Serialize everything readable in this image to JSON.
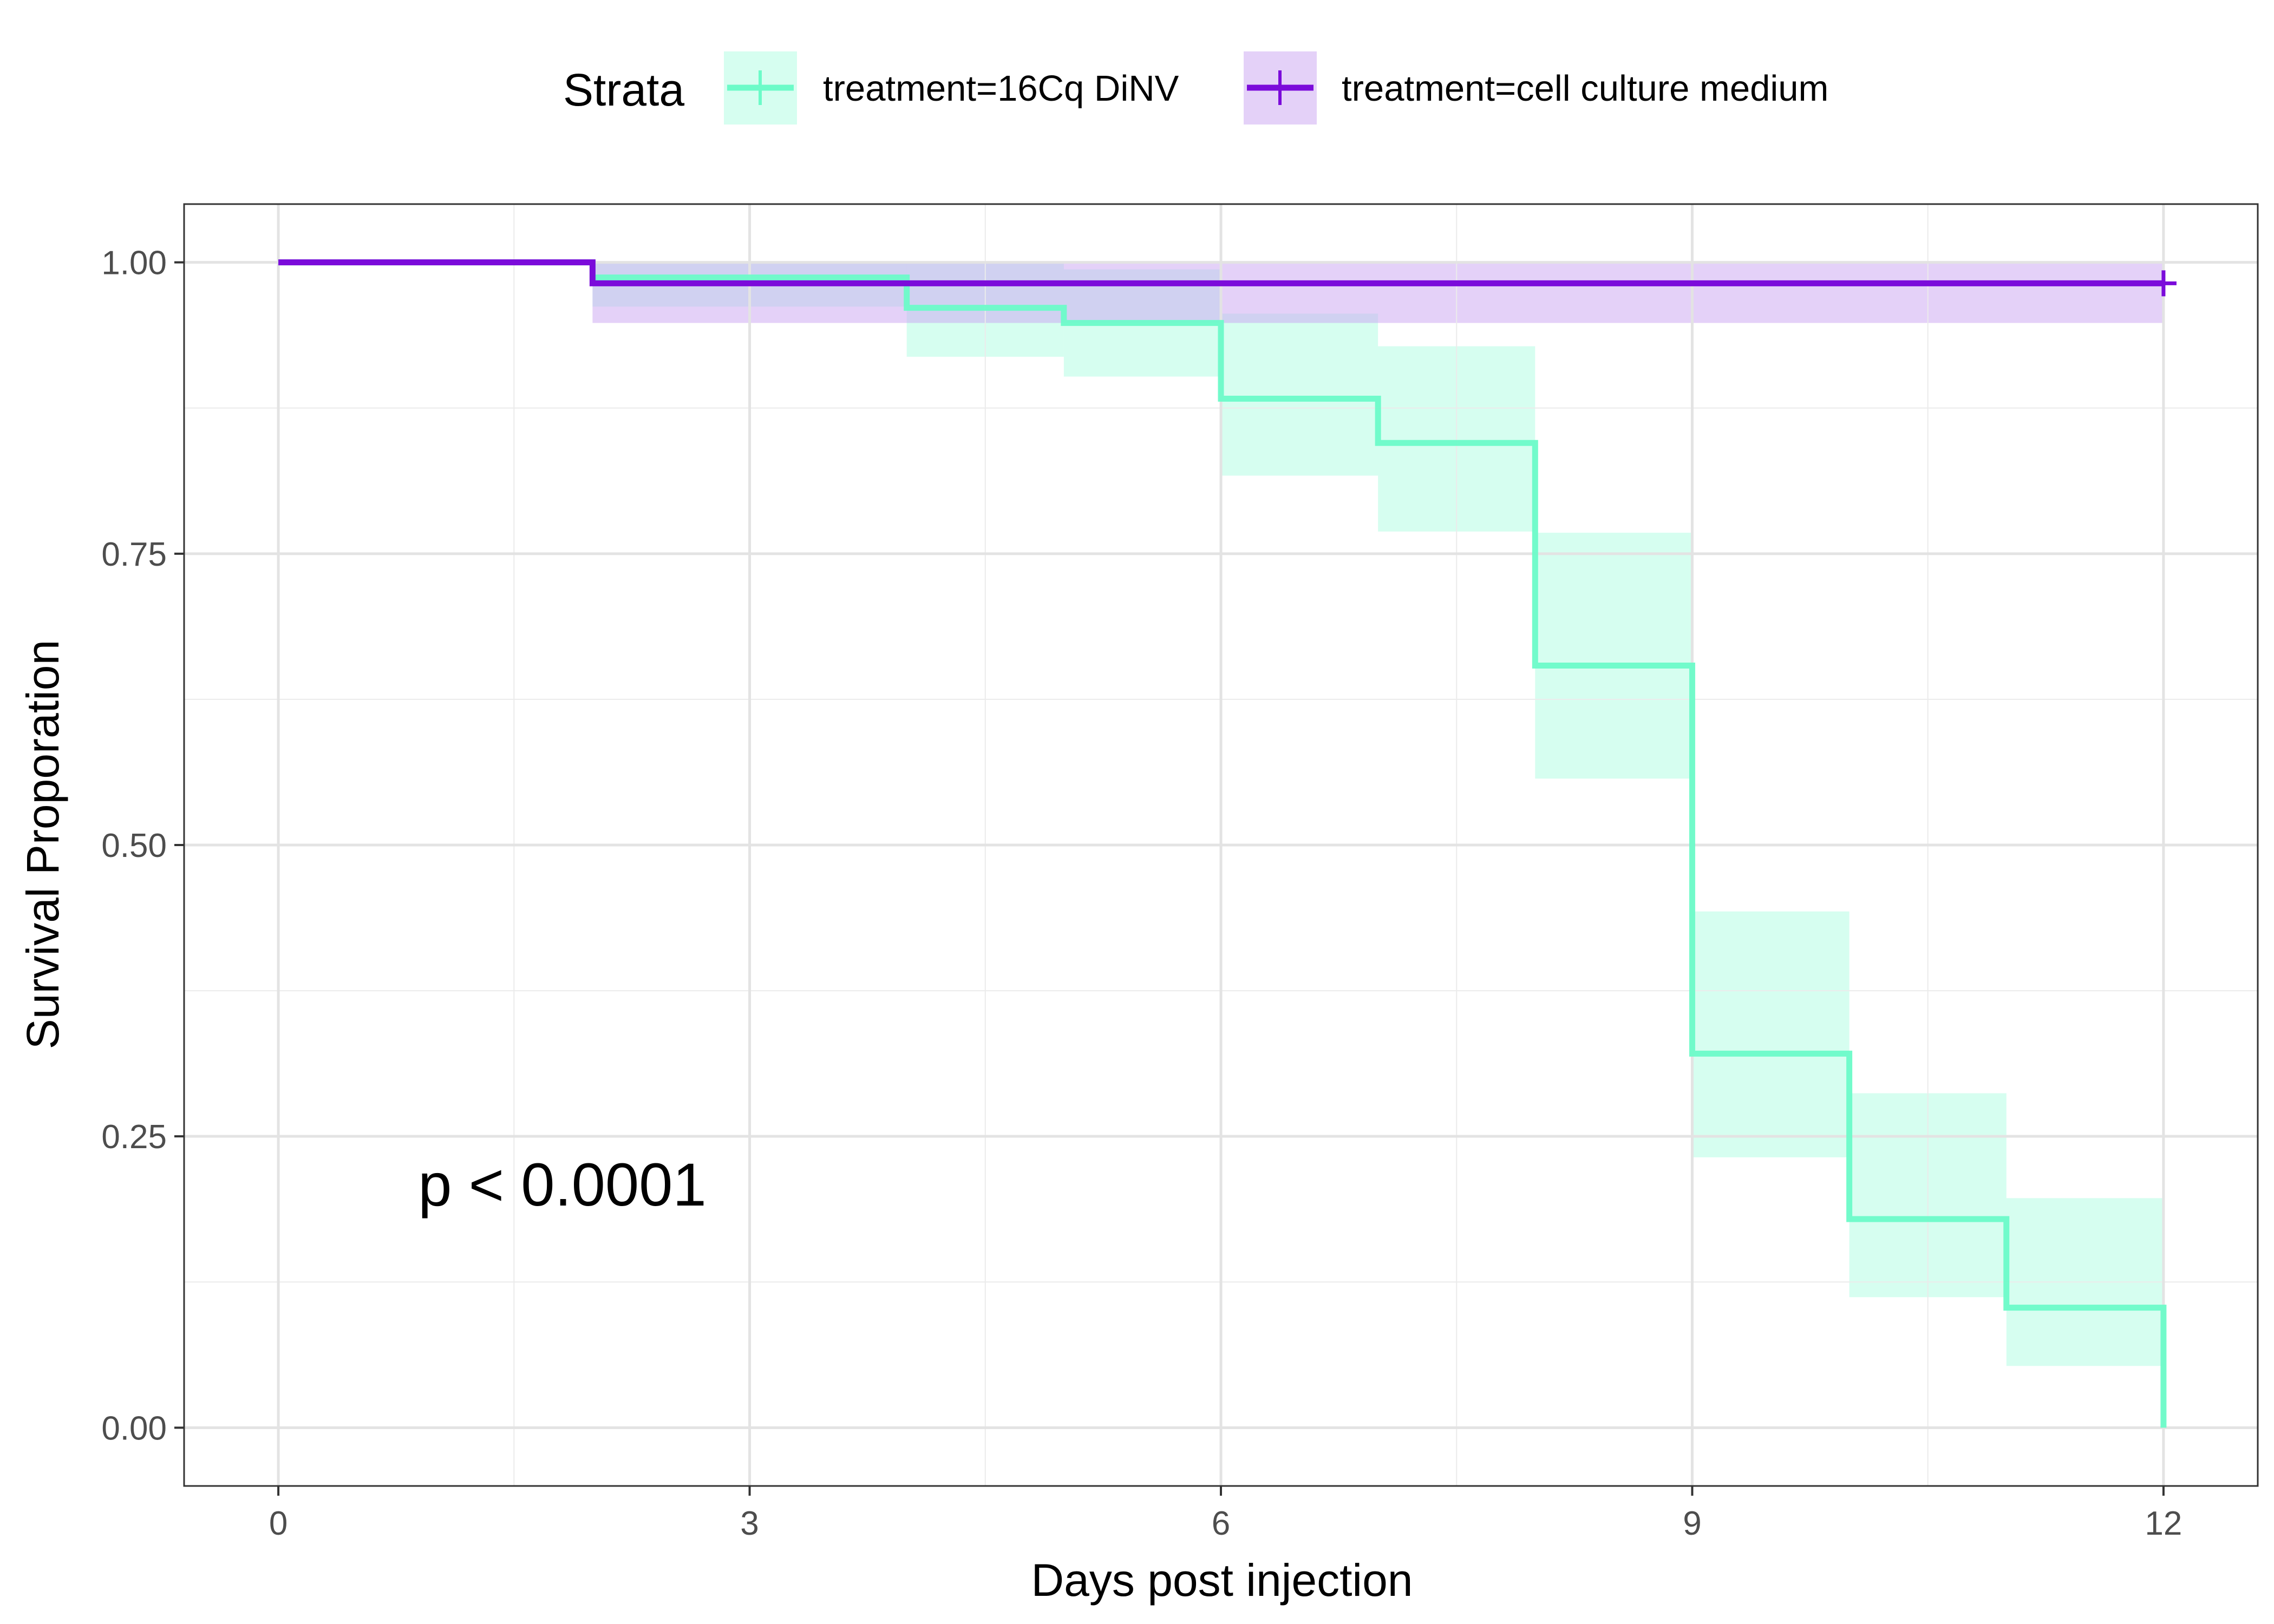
{
  "chart_data": {
    "type": "line",
    "step": true,
    "xlabel": "Days post injection",
    "ylabel": "Survival Proporation",
    "xlim": [
      -0.6,
      12.6
    ],
    "ylim": [
      -0.05,
      1.05
    ],
    "xticks": [
      0,
      3,
      6,
      9,
      12
    ],
    "xtick_labels": [
      "0",
      "3",
      "6",
      "9",
      "12"
    ],
    "yticks": [
      0,
      0.25,
      0.5,
      0.75,
      1.0
    ],
    "ytick_labels": [
      "0.00",
      "0.25",
      "0.50",
      "0.75",
      "1.00"
    ],
    "grid": true,
    "annotation": {
      "text": "p < 0.0001",
      "x": 1.2,
      "y": 0.2
    },
    "legend": {
      "title": "Strata",
      "placement": "top"
    },
    "series": [
      {
        "name": "treatment=16Cq DiNV",
        "color": "#6CFBC8",
        "ci_color": "#6CFBC8",
        "x": [
          0,
          2,
          4,
          5,
          6,
          7,
          8,
          9,
          10,
          11,
          12
        ],
        "y": [
          1.0,
          0.987,
          0.961,
          0.948,
          0.883,
          0.845,
          0.654,
          0.321,
          0.179,
          0.103,
          0.0
        ],
        "lower": [
          1.0,
          0.962,
          0.919,
          0.902,
          0.817,
          0.769,
          0.557,
          0.232,
          0.112,
          0.053,
          0.0
        ],
        "upper": [
          1.0,
          1.0,
          1.0,
          0.994,
          0.956,
          0.928,
          0.768,
          0.443,
          0.287,
          0.197,
          0.0
        ],
        "censor_x": []
      },
      {
        "name": "treatment=cell culture medium",
        "color": "#7B0BDA",
        "ci_color": "#C9A3F2",
        "x": [
          0,
          2,
          12
        ],
        "y": [
          1.0,
          0.982,
          0.982
        ],
        "lower": [
          1.0,
          0.948,
          0.948
        ],
        "upper": [
          1.0,
          1.0,
          1.0
        ],
        "censor_x": [
          12
        ]
      }
    ]
  }
}
